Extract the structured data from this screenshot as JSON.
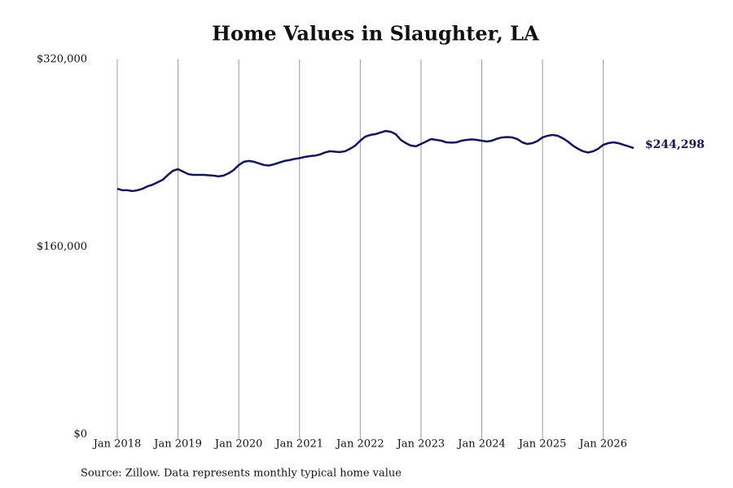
{
  "chart_data": {
    "type": "line",
    "title": "Home Values in Slaughter, LA",
    "source": "Source: Zillow. Data represents monthly typical home value",
    "color": "#14145a",
    "grid": true,
    "x": [
      "2018-01",
      "2018-02",
      "2018-03",
      "2018-04",
      "2018-05",
      "2018-06",
      "2018-07",
      "2018-08",
      "2018-09",
      "2018-10",
      "2018-11",
      "2018-12",
      "2019-01",
      "2019-02",
      "2019-03",
      "2019-04",
      "2019-05",
      "2019-06",
      "2019-07",
      "2019-08",
      "2019-09",
      "2019-10",
      "2019-11",
      "2019-12",
      "2020-01",
      "2020-02",
      "2020-03",
      "2020-04",
      "2020-05",
      "2020-06",
      "2020-07",
      "2020-08",
      "2020-09",
      "2020-10",
      "2020-11",
      "2020-12",
      "2021-01",
      "2021-02",
      "2021-03",
      "2021-04",
      "2021-05",
      "2021-06",
      "2021-07",
      "2021-08",
      "2021-09",
      "2021-10",
      "2021-11",
      "2021-12",
      "2022-01",
      "2022-02",
      "2022-03",
      "2022-04",
      "2022-05",
      "2022-06",
      "2022-07",
      "2022-08",
      "2022-09",
      "2022-10",
      "2022-11",
      "2022-12",
      "2023-01",
      "2023-02",
      "2023-03",
      "2023-04",
      "2023-05",
      "2023-06",
      "2023-07",
      "2023-08",
      "2023-09",
      "2023-10",
      "2023-11",
      "2023-12",
      "2024-01",
      "2024-02",
      "2024-03",
      "2024-04",
      "2024-05",
      "2024-06",
      "2024-07",
      "2024-08",
      "2024-09",
      "2024-10",
      "2024-11",
      "2024-12",
      "2025-01",
      "2025-02",
      "2025-03",
      "2025-04",
      "2025-05",
      "2025-06",
      "2025-07",
      "2025-08",
      "2025-09",
      "2025-10",
      "2025-11",
      "2025-12",
      "2026-01",
      "2026-02",
      "2026-03",
      "2026-04",
      "2026-05",
      "2026-06",
      "2026-07"
    ],
    "values": [
      209600,
      208300,
      208300,
      207600,
      208300,
      209600,
      211700,
      213100,
      215200,
      217300,
      221400,
      224900,
      226300,
      224200,
      222100,
      221400,
      221400,
      221400,
      221100,
      220800,
      220100,
      220800,
      222800,
      225600,
      229800,
      232600,
      233300,
      232600,
      231200,
      229800,
      229400,
      230500,
      231900,
      233300,
      234000,
      235000,
      235700,
      236700,
      237400,
      237800,
      238800,
      240500,
      241600,
      241200,
      240900,
      241600,
      243700,
      246400,
      250600,
      254100,
      255500,
      256200,
      257600,
      258900,
      258200,
      256200,
      251300,
      248500,
      246400,
      245800,
      247800,
      249900,
      252000,
      251300,
      250600,
      249200,
      248900,
      249200,
      250600,
      251300,
      251700,
      251300,
      250600,
      249900,
      250600,
      252300,
      253400,
      253700,
      253400,
      252000,
      249200,
      247800,
      248500,
      250300,
      253400,
      254800,
      255500,
      254800,
      252700,
      249900,
      246400,
      243700,
      241600,
      240500,
      241600,
      243700,
      247100,
      248500,
      249200,
      248500,
      247100,
      245800,
      244298
    ],
    "value_labels": [
      null,
      null,
      null,
      null,
      null,
      null,
      null,
      null,
      null,
      null,
      null,
      null,
      null,
      null,
      null,
      null,
      null,
      null,
      null,
      null,
      null,
      null,
      null,
      null,
      null,
      null,
      null,
      null,
      null,
      null,
      null,
      null,
      null,
      null,
      null,
      null,
      null,
      null,
      null,
      null,
      null,
      null,
      null,
      null,
      null,
      null,
      null,
      null,
      null,
      null,
      null,
      null,
      null,
      null,
      null,
      null,
      null,
      null,
      null,
      null,
      null,
      null,
      null,
      null,
      null,
      null,
      null,
      null,
      null,
      null,
      null,
      null,
      null,
      null,
      null,
      null,
      null,
      null,
      null,
      null,
      null,
      null,
      null,
      null,
      null,
      null,
      null,
      null,
      null,
      null,
      null,
      null,
      null,
      null,
      null,
      null,
      null,
      null,
      null,
      null,
      null,
      null,
      "$244,298"
    ],
    "xlim": [
      "2018-01",
      "2026-07"
    ],
    "xticks": [
      {
        "value": "2018-01",
        "label": "Jan 2018"
      },
      {
        "value": "2019-01",
        "label": "Jan 2019"
      },
      {
        "value": "2020-01",
        "label": "Jan 2020"
      },
      {
        "value": "2021-01",
        "label": "Jan 2021"
      },
      {
        "value": "2022-01",
        "label": "Jan 2022"
      },
      {
        "value": "2023-01",
        "label": "Jan 2023"
      },
      {
        "value": "2024-01",
        "label": "Jan 2024"
      },
      {
        "value": "2025-01",
        "label": "Jan 2025"
      },
      {
        "value": "2026-01",
        "label": "Jan 2026"
      }
    ],
    "ylim": [
      0,
      320000
    ],
    "yticks": [
      {
        "value": 0,
        "label": "$0"
      },
      {
        "value": 160000,
        "label": "$160,000"
      },
      {
        "value": 320000,
        "label": "$320,000"
      }
    ]
  }
}
